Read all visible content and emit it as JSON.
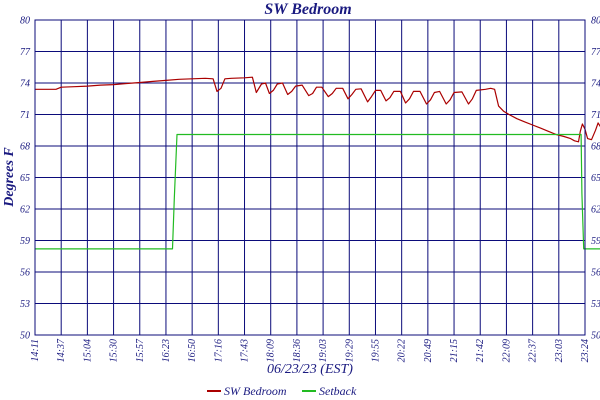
{
  "chart_data": {
    "type": "line",
    "title": "SW Bedroom",
    "xlabel": "06/23/23 (EST)",
    "ylabel": "Degrees F",
    "y_ticks": [
      "50",
      "53",
      "56",
      "59",
      "62",
      "65",
      "68",
      "71",
      "74",
      "77",
      "80"
    ],
    "ylim": [
      50,
      80
    ],
    "x_ticks": [
      "14:11",
      "14:37",
      "15:04",
      "15:30",
      "15:57",
      "16:23",
      "16:50",
      "17:16",
      "17:43",
      "18:09",
      "18:36",
      "19:03",
      "19:29",
      "19:55",
      "20:22",
      "20:49",
      "21:15",
      "21:42",
      "22:09",
      "22:37",
      "23:03",
      "23:24"
    ],
    "grid": true,
    "legend_position": "bottom-center",
    "series": [
      {
        "name": "SW Bedroom",
        "color": "#aa0000",
        "points": [
          [
            0,
            73.4
          ],
          [
            0.8,
            73.4
          ],
          [
            1,
            73.6
          ],
          [
            1.5,
            73.65
          ],
          [
            2,
            73.7
          ],
          [
            2.5,
            73.8
          ],
          [
            3,
            73.85
          ],
          [
            3.5,
            73.95
          ],
          [
            4,
            74.05
          ],
          [
            4.5,
            74.15
          ],
          [
            5,
            74.25
          ],
          [
            5.5,
            74.35
          ],
          [
            6,
            74.4
          ],
          [
            6.5,
            74.45
          ],
          [
            6.8,
            74.4
          ],
          [
            6.95,
            73.2
          ],
          [
            7.1,
            73.5
          ],
          [
            7.25,
            74.4
          ],
          [
            7.5,
            74.45
          ],
          [
            8,
            74.5
          ],
          [
            8.3,
            74.55
          ],
          [
            8.45,
            73.1
          ],
          [
            8.65,
            73.9
          ],
          [
            8.8,
            74.0
          ],
          [
            8.95,
            73.0
          ],
          [
            9.1,
            73.3
          ],
          [
            9.25,
            73.9
          ],
          [
            9.45,
            74.0
          ],
          [
            9.65,
            72.9
          ],
          [
            9.8,
            73.2
          ],
          [
            9.95,
            73.7
          ],
          [
            10.2,
            73.8
          ],
          [
            10.45,
            72.8
          ],
          [
            10.6,
            73.0
          ],
          [
            10.75,
            73.6
          ],
          [
            10.95,
            73.6
          ],
          [
            11.2,
            72.7
          ],
          [
            11.35,
            73.0
          ],
          [
            11.5,
            73.5
          ],
          [
            11.75,
            73.5
          ],
          [
            11.95,
            72.5
          ],
          [
            12.1,
            72.9
          ],
          [
            12.25,
            73.4
          ],
          [
            12.45,
            73.45
          ],
          [
            12.7,
            72.2
          ],
          [
            12.85,
            72.7
          ],
          [
            13.0,
            73.3
          ],
          [
            13.2,
            73.3
          ],
          [
            13.4,
            72.3
          ],
          [
            13.55,
            72.6
          ],
          [
            13.7,
            73.2
          ],
          [
            13.95,
            73.2
          ],
          [
            14.15,
            72.1
          ],
          [
            14.3,
            72.5
          ],
          [
            14.45,
            73.2
          ],
          [
            14.7,
            73.2
          ],
          [
            14.95,
            72.0
          ],
          [
            15.1,
            72.4
          ],
          [
            15.25,
            73.1
          ],
          [
            15.45,
            73.2
          ],
          [
            15.7,
            72.0
          ],
          [
            15.85,
            72.4
          ],
          [
            16.0,
            73.1
          ],
          [
            16.3,
            73.15
          ],
          [
            16.55,
            72.0
          ],
          [
            16.7,
            72.5
          ],
          [
            16.85,
            73.3
          ],
          [
            17.2,
            73.4
          ],
          [
            17.4,
            73.5
          ],
          [
            17.55,
            73.4
          ],
          [
            17.7,
            71.8
          ],
          [
            17.9,
            71.3
          ],
          [
            18.1,
            71.0
          ],
          [
            18.4,
            70.6
          ],
          [
            18.7,
            70.3
          ],
          [
            19.0,
            70.0
          ],
          [
            19.3,
            69.7
          ],
          [
            19.6,
            69.4
          ],
          [
            19.9,
            69.1
          ],
          [
            20.2,
            68.9
          ],
          [
            20.45,
            68.7
          ],
          [
            20.6,
            68.5
          ],
          [
            20.75,
            68.4
          ],
          [
            20.82,
            69.4
          ],
          [
            20.9,
            70.1
          ],
          [
            21.0,
            69.6
          ],
          [
            21.1,
            68.7
          ],
          [
            21.25,
            68.6
          ],
          [
            21.4,
            69.5
          ],
          [
            21.5,
            70.2
          ],
          [
            21.6,
            69.8
          ],
          [
            21.7,
            69.3
          ],
          [
            21.8,
            69.6
          ]
        ]
      },
      {
        "name": "Setback",
        "color": "#22bb22",
        "points": [
          [
            0,
            58.2
          ],
          [
            5.25,
            58.2
          ],
          [
            5.32,
            63.0
          ],
          [
            5.42,
            69.1
          ],
          [
            20.85,
            69.1
          ],
          [
            20.88,
            63.5
          ],
          [
            20.95,
            58.2
          ],
          [
            21.8,
            58.2
          ]
        ]
      }
    ]
  }
}
